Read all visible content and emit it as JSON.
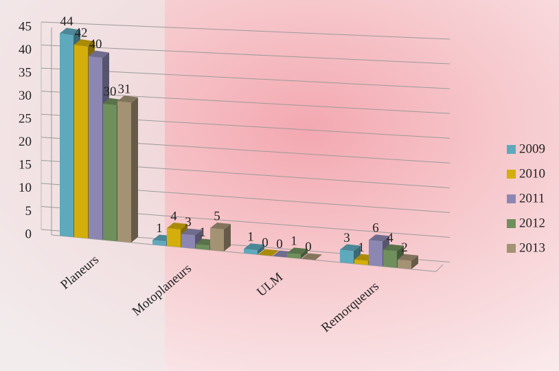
{
  "chart_data": {
    "type": "bar3d",
    "categories": [
      "Planeurs",
      "Motoplaneurs",
      "ULM",
      "Remorqueurs"
    ],
    "series": [
      {
        "name": "2009",
        "color": "#5fa9bd",
        "values": [
          44,
          1,
          1,
          3
        ]
      },
      {
        "name": "2010",
        "color": "#d4ae0a",
        "values": [
          42,
          4,
          0,
          1
        ]
      },
      {
        "name": "2011",
        "color": "#8c87b2",
        "values": [
          40,
          3,
          0,
          6
        ]
      },
      {
        "name": "2012",
        "color": "#6f8f5c",
        "values": [
          30,
          1,
          1,
          4
        ]
      },
      {
        "name": "2013",
        "color": "#a49274",
        "values": [
          31,
          5,
          0,
          2
        ]
      }
    ],
    "ylim": [
      0,
      45
    ],
    "yticks": [
      0,
      5,
      10,
      15,
      20,
      25,
      30,
      35,
      40,
      45
    ],
    "grid": true,
    "legend": "right"
  }
}
